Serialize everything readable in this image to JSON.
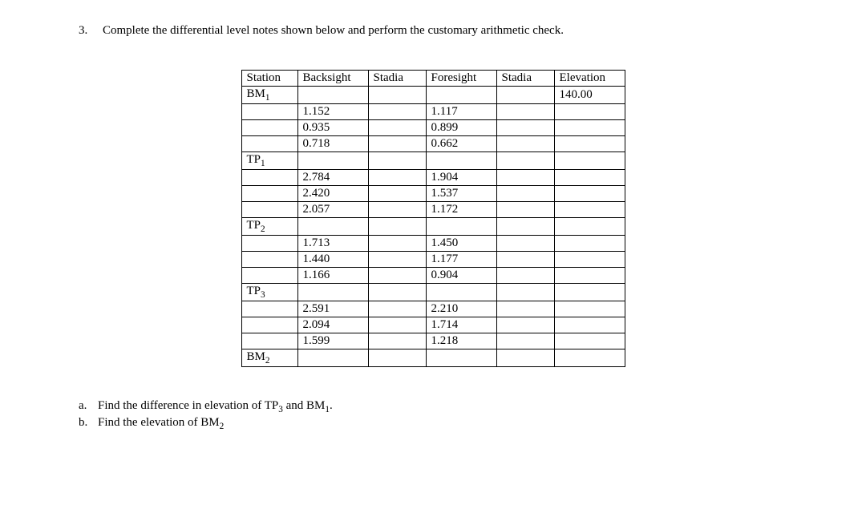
{
  "question": {
    "number": "3.",
    "text": "Complete the differential level notes shown below and perform the customary arithmetic check."
  },
  "table": {
    "columns": [
      "Station",
      "Backsight",
      "Stadia",
      "Foresight",
      "Stadia",
      "Elevation"
    ],
    "rows": [
      [
        "BM₁",
        "",
        "",
        "",
        "",
        "140.00"
      ],
      [
        "",
        "1.152",
        "",
        "1.117",
        "",
        ""
      ],
      [
        "",
        "0.935",
        "",
        "0.899",
        "",
        ""
      ],
      [
        "",
        "0.718",
        "",
        "0.662",
        "",
        ""
      ],
      [
        "TP₁",
        "",
        "",
        "",
        "",
        ""
      ],
      [
        "",
        "2.784",
        "",
        "1.904",
        "",
        ""
      ],
      [
        "",
        "2.420",
        "",
        "1.537",
        "",
        ""
      ],
      [
        "",
        "2.057",
        "",
        "1.172",
        "",
        ""
      ],
      [
        "TP₂",
        "",
        "",
        "",
        "",
        ""
      ],
      [
        "",
        "1.713",
        "",
        "1.450",
        "",
        ""
      ],
      [
        "",
        "1.440",
        "",
        "1.177",
        "",
        ""
      ],
      [
        "",
        "1.166",
        "",
        "0.904",
        "",
        ""
      ],
      [
        "TP₃",
        "",
        "",
        "",
        "",
        ""
      ],
      [
        "",
        "2.591",
        "",
        "2.210",
        "",
        ""
      ],
      [
        "",
        "2.094",
        "",
        "1.714",
        "",
        ""
      ],
      [
        "",
        "1.599",
        "",
        "1.218",
        "",
        ""
      ],
      [
        "BM₂",
        "",
        "",
        "",
        "",
        ""
      ]
    ]
  },
  "subquestions": {
    "a": {
      "label": "a.",
      "text": "Find the difference in elevation of TP₃ and BM₁."
    },
    "b": {
      "label": "b.",
      "text": "Find the elevation of BM₂"
    }
  }
}
